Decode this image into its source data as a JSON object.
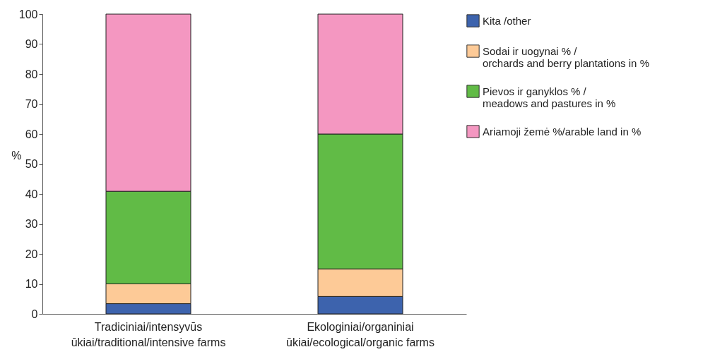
{
  "chart_data": {
    "type": "bar",
    "stacked": true,
    "ylabel": "%",
    "categories": [
      "Tradiciniai/intensyvūs ūkiai/traditional/intensive farms",
      "Ekologiniai/organiniai ūkiai/ecological/organic farms"
    ],
    "series": [
      {
        "name": "Kita /other",
        "color": "#3d63ad",
        "values": [
          3.4,
          5.8
        ]
      },
      {
        "name": "Sodai ir uogynai % / orchards and berry plantations in %",
        "color": "#fdca97",
        "values": [
          6.6,
          9.2
        ]
      },
      {
        "name": "Pievos ir ganyklos % / meadows and pastures in %",
        "color": "#61bb46",
        "values": [
          30.9,
          45
        ]
      },
      {
        "name": "Ariamoji žemė %/arable land in %",
        "color": "#f497c1",
        "values": [
          59.1,
          40
        ]
      }
    ],
    "ylim": [
      0,
      100
    ],
    "yticks": [
      0,
      10,
      20,
      30,
      40,
      50,
      60,
      70,
      80,
      90,
      100
    ],
    "grid": false,
    "legend": "right"
  }
}
